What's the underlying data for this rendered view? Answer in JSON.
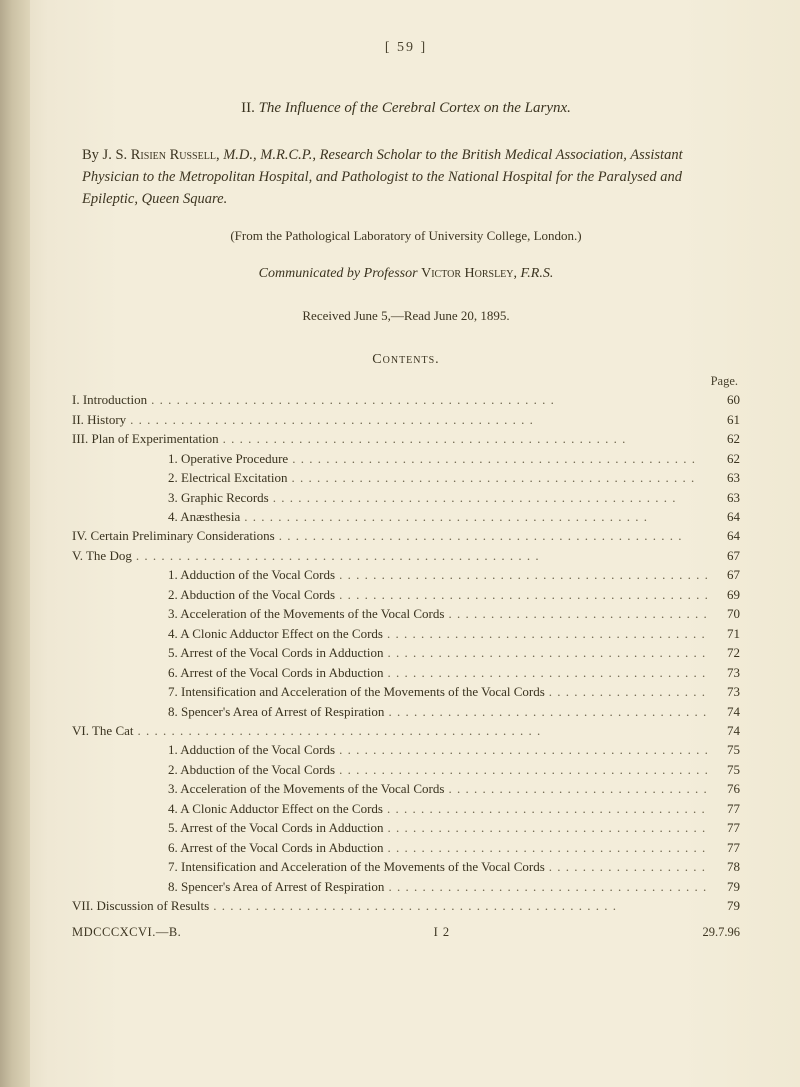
{
  "colors": {
    "page_bg": "#f3edda",
    "text": "#3a331f",
    "muted": "#4a432f",
    "leader": "#6a6148"
  },
  "typography": {
    "body_font": "Times New Roman",
    "body_size_pt": 10,
    "title_size_pt": 11,
    "heading_smallcaps": true
  },
  "header": {
    "page_number_top": "[   59   ]"
  },
  "title": {
    "roman": "II.",
    "text": "The Influence of the Cerebral Cortex on the Larynx."
  },
  "authors": {
    "by": "By",
    "name": "J. S. Risien Russell,",
    "credentials": "M.D., M.R.C.P., Research Scholar to the British Medical Association, Assistant Physician to the Metropolitan Hospital, and Pathologist to the National Hospital for the Paralysed and Epileptic, Queen Square."
  },
  "note": "(From the Pathological Laboratory of University College, London.)",
  "communicated": {
    "prefix": "Communicated by Professor",
    "name": "Victor Horsley,",
    "suffix": "F.R.S."
  },
  "received": "Received June 5,—Read June 20, 1895.",
  "contents_heading": "Contents.",
  "page_label": "Page.",
  "toc": [
    {
      "indent": 0,
      "label": "I. Introduction",
      "page": "60"
    },
    {
      "indent": 0,
      "label": "II. History",
      "page": "61"
    },
    {
      "indent": 0,
      "label": "III. Plan of Experimentation",
      "page": "62"
    },
    {
      "indent": 1,
      "label": "1. Operative Procedure",
      "page": "62"
    },
    {
      "indent": 1,
      "label": "2. Electrical Excitation",
      "page": "63"
    },
    {
      "indent": 1,
      "label": "3. Graphic Records",
      "page": "63"
    },
    {
      "indent": 1,
      "label": "4. Anæsthesia",
      "page": "64"
    },
    {
      "indent": 0,
      "label": "IV. Certain Preliminary Considerations",
      "page": "64"
    },
    {
      "indent": 0,
      "label": "V. The Dog",
      "page": "67"
    },
    {
      "indent": 1,
      "label": "1. Adduction of the Vocal Cords",
      "page": "67"
    },
    {
      "indent": 1,
      "label": "2. Abduction of the Vocal Cords",
      "page": "69"
    },
    {
      "indent": 1,
      "label": "3. Acceleration of the Movements of the Vocal Cords",
      "page": "70"
    },
    {
      "indent": 1,
      "label": "4. A Clonic Adductor Effect on the Cords",
      "page": "71"
    },
    {
      "indent": 1,
      "label": "5. Arrest of the Vocal Cords in Adduction",
      "page": "72"
    },
    {
      "indent": 1,
      "label": "6. Arrest of the Vocal Cords in Abduction",
      "page": "73"
    },
    {
      "indent": 1,
      "label": "7. Intensification and Acceleration of the Movements of the Vocal Cords",
      "page": "73"
    },
    {
      "indent": 1,
      "label": "8. Spencer's Area of Arrest of Respiration",
      "page": "74"
    },
    {
      "indent": 0,
      "label": "VI. The Cat",
      "page": "74"
    },
    {
      "indent": 1,
      "label": "1. Adduction of the Vocal Cords",
      "page": "75"
    },
    {
      "indent": 1,
      "label": "2. Abduction of the Vocal Cords",
      "page": "75"
    },
    {
      "indent": 1,
      "label": "3. Acceleration of the Movements of the Vocal Cords",
      "page": "76"
    },
    {
      "indent": 1,
      "label": "4. A Clonic Adductor Effect on the Cords",
      "page": "77"
    },
    {
      "indent": 1,
      "label": "5. Arrest of the Vocal Cords in Adduction",
      "page": "77"
    },
    {
      "indent": 1,
      "label": "6. Arrest of the Vocal Cords in Abduction",
      "page": "77"
    },
    {
      "indent": 1,
      "label": "7. Intensification and Acceleration of the Movements of the Vocal Cords",
      "page": "78"
    },
    {
      "indent": 1,
      "label": "8. Spencer's Area of Arrest of Respiration",
      "page": "79"
    },
    {
      "indent": 0,
      "label": "VII. Discussion of Results",
      "page": "79"
    }
  ],
  "footer": {
    "left": "MDCCCXCVI.—B.",
    "middle": "I   2",
    "right": "29.7.96"
  }
}
